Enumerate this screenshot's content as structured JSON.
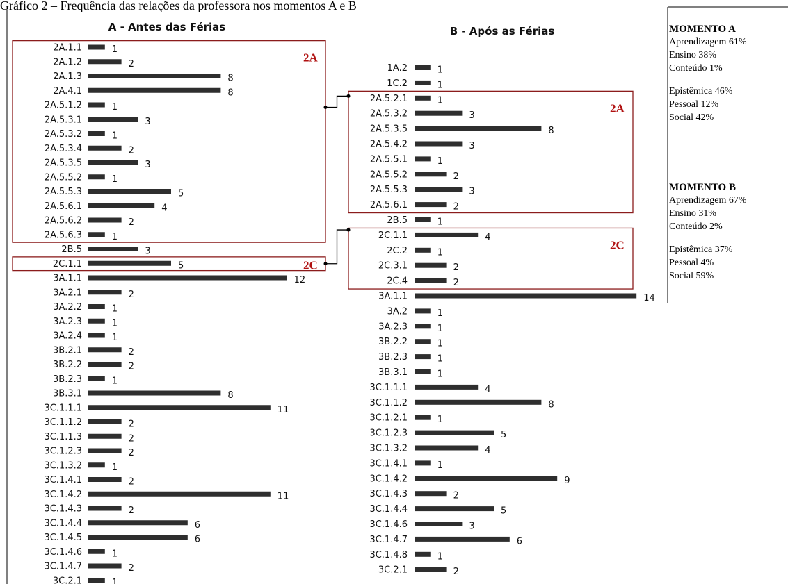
{
  "caption": "Gráfico 2 – Frequência das relações da professora nos momentos A e B",
  "colors": {
    "bar": "#2e2e2e",
    "box": "#8b1c1c",
    "group_label": "#b01010"
  },
  "chart_data": [
    {
      "type": "bar",
      "orientation": "horizontal",
      "title": "A - Antes das Férias",
      "categories": [
        "2A.1.1",
        "2A.1.2",
        "2A.1.3",
        "2A.4.1",
        "2A.5.1.2",
        "2A.5.3.1",
        "2A.5.3.2",
        "2A.5.3.4",
        "2A.5.3.5",
        "2A.5.5.2",
        "2A.5.5.3",
        "2A.5.6.1",
        "2A.5.6.2",
        "2A.5.6.3",
        "2B.5",
        "2C.1.1",
        "3A.1.1",
        "3A.2.1",
        "3A.2.2",
        "3A.2.3",
        "3A.2.4",
        "3B.2.1",
        "3B.2.2",
        "3B.2.3",
        "3B.3.1",
        "3C.1.1.1",
        "3C.1.1.2",
        "3C.1.1.3",
        "3C.1.2.3",
        "3C.1.3.2",
        "3C.1.4.1",
        "3C.1.4.2",
        "3C.1.4.3",
        "3C.1.4.4",
        "3C.1.4.5",
        "3C.1.4.6",
        "3C.1.4.7",
        "3C.2.1"
      ],
      "values": [
        1,
        2,
        8,
        8,
        1,
        3,
        1,
        2,
        3,
        1,
        5,
        4,
        2,
        1,
        3,
        5,
        12,
        2,
        1,
        1,
        1,
        2,
        2,
        1,
        8,
        11,
        2,
        2,
        2,
        1,
        2,
        11,
        2,
        6,
        6,
        1,
        2,
        1
      ],
      "groups": [
        {
          "label": "2A",
          "start": 0,
          "end": 13
        },
        {
          "label": "2C",
          "start": 15,
          "end": 15
        }
      ]
    },
    {
      "type": "bar",
      "orientation": "horizontal",
      "title": "B - Após as Férias",
      "categories": [
        "1A.2",
        "1C.2",
        "2A.5.2.1",
        "2A.5.3.2",
        "2A.5.3.5",
        "2A.5.4.2",
        "2A.5.5.1",
        "2A.5.5.2",
        "2A.5.5.3",
        "2A.5.6.1",
        "2B.5",
        "2C.1.1",
        "2C.2",
        "2C.3.1",
        "2C.4",
        "3A.1.1",
        "3A.2",
        "3A.2.3",
        "3B.2.2",
        "3B.2.3",
        "3B.3.1",
        "3C.1.1.1",
        "3C.1.1.2",
        "3C.1.2.1",
        "3C.1.2.3",
        "3C.1.3.2",
        "3C.1.4.1",
        "3C.1.4.2",
        "3C.1.4.3",
        "3C.1.4.4",
        "3C.1.4.6",
        "3C.1.4.7",
        "3C.1.4.8",
        "3C.2.1"
      ],
      "values": [
        1,
        1,
        1,
        3,
        8,
        3,
        1,
        2,
        3,
        2,
        1,
        4,
        1,
        2,
        2,
        14,
        1,
        1,
        1,
        1,
        1,
        4,
        8,
        1,
        5,
        4,
        1,
        9,
        2,
        5,
        3,
        6,
        1,
        2
      ],
      "groups": [
        {
          "label": "2A",
          "start": 2,
          "end": 9
        },
        {
          "label": "2C",
          "start": 11,
          "end": 14
        }
      ]
    }
  ],
  "stats": [
    {
      "heading": "MOMENTO A",
      "lines": [
        "Aprendizagem 61%",
        "Ensino 38%",
        "Conteúdo 1%",
        "",
        "Epistêmica 46%",
        "Pessoal 12%",
        "Social 42%"
      ]
    },
    {
      "heading": "MOMENTO B",
      "lines": [
        "Aprendizagem 67%",
        "Ensino 31%",
        "Conteúdo 2%",
        "",
        "Epistêmica 37%",
        "Pessoal 4%",
        "Social 59%"
      ]
    }
  ]
}
